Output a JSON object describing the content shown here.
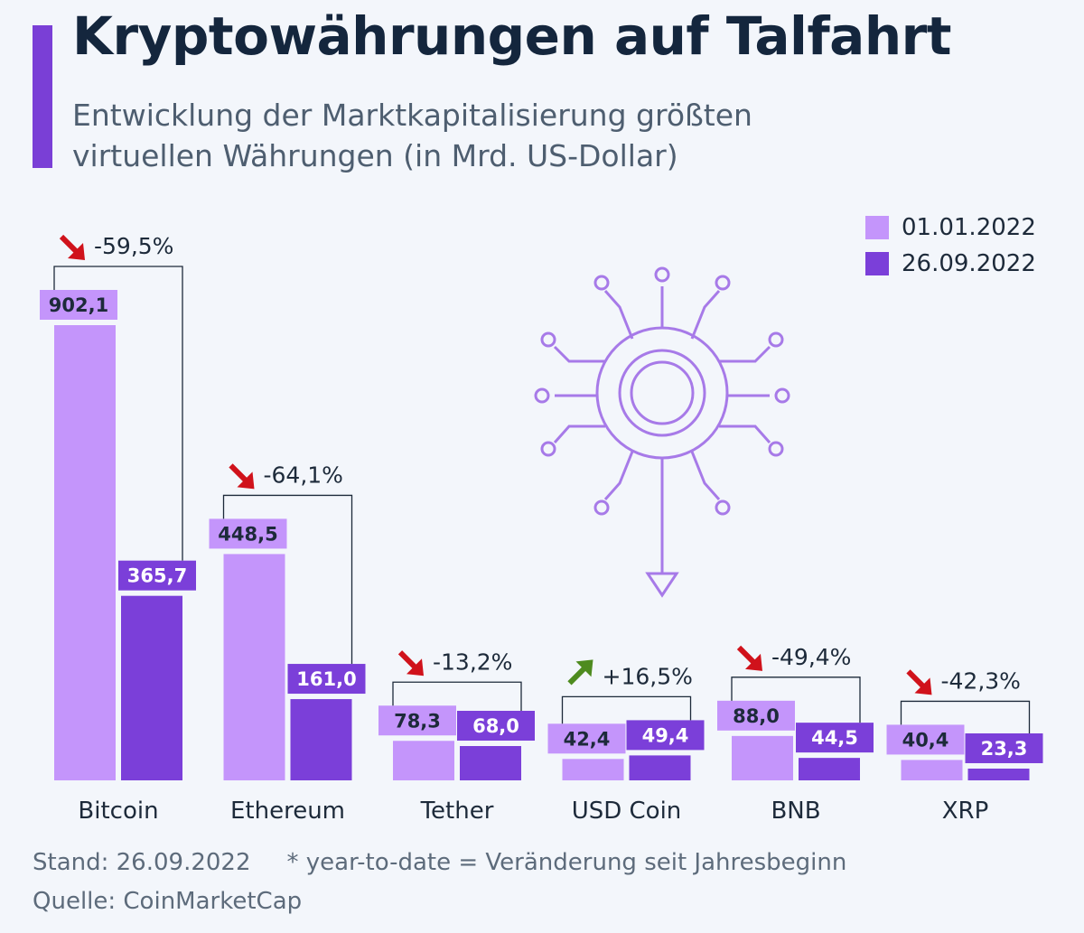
{
  "header": {
    "title": "Kryptowährungen auf Talfahrt",
    "subtitle": "Entwicklung der Marktkapitalisierung größten virtuellen Währungen (in Mrd. US-Dollar)"
  },
  "legend": [
    {
      "label": "01.01.2022",
      "color": "#c495fb"
    },
    {
      "label": "26.09.2022",
      "color": "#7b3fd9"
    }
  ],
  "chart_data": {
    "type": "bar",
    "categories": [
      "Bitcoin",
      "Ethereum",
      "Tether",
      "USD Coin",
      "BNB",
      "XRP"
    ],
    "series": [
      {
        "name": "01.01.2022",
        "values": [
          902.1,
          448.5,
          78.3,
          42.4,
          88.0,
          40.4
        ],
        "labels": [
          "902,1",
          "448,5",
          "78,3",
          "42,4",
          "88,0",
          "40,4"
        ],
        "color": "#c495fb"
      },
      {
        "name": "26.09.2022",
        "values": [
          365.7,
          161.0,
          68.0,
          49.4,
          44.5,
          23.3
        ],
        "labels": [
          "365,7",
          "161,0",
          "68,0",
          "49,4",
          "44,5",
          "23,3"
        ],
        "color": "#7b3fd9"
      }
    ],
    "changes": [
      "-59,5%",
      "-64,1%",
      "-13,2%",
      "+16,5%",
      "-49,4%",
      "-42,3%"
    ],
    "change_direction": [
      "down",
      "down",
      "down",
      "up",
      "down",
      "down"
    ],
    "arrow_colors": {
      "down": "#d0121b",
      "up": "#4e8b1f"
    },
    "ylim": [
      0,
      920
    ],
    "grid": false,
    "legend_position": "top-right"
  },
  "footer": {
    "stand": "Stand: 26.09.2022",
    "note": "* year-to-date = Veränderung seit Jahresbeginn",
    "source": "Quelle: CoinMarketCap"
  }
}
